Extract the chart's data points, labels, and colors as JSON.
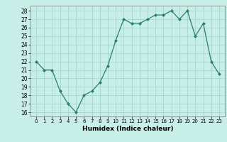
{
  "x": [
    0,
    1,
    2,
    3,
    4,
    5,
    6,
    7,
    8,
    9,
    10,
    11,
    12,
    13,
    14,
    15,
    16,
    17,
    18,
    19,
    20,
    21,
    22,
    23
  ],
  "y": [
    22,
    21,
    21,
    18.5,
    17,
    16,
    18,
    18.5,
    19.5,
    21.5,
    24.5,
    27,
    26.5,
    26.5,
    27,
    27.5,
    27.5,
    28,
    27,
    28,
    25,
    26.5,
    22,
    20.5
  ],
  "line_color": "#2e7d6e",
  "marker_color": "#2e7d6e",
  "bg_color": "#c8eee8",
  "grid_color": "#a0d8d0",
  "xlabel": "Humidex (Indice chaleur)",
  "ylim": [
    15.5,
    28.6
  ],
  "yticks": [
    16,
    17,
    18,
    19,
    20,
    21,
    22,
    23,
    24,
    25,
    26,
    27,
    28
  ],
  "xticks": [
    0,
    1,
    2,
    3,
    4,
    5,
    6,
    7,
    8,
    9,
    10,
    11,
    12,
    13,
    14,
    15,
    16,
    17,
    18,
    19,
    20,
    21,
    22,
    23
  ],
  "tick_labels": [
    "0",
    "1",
    "2",
    "3",
    "4",
    "5",
    "6",
    "7",
    "8",
    "9",
    "10",
    "11",
    "12",
    "13",
    "14",
    "15",
    "16",
    "17",
    "18",
    "19",
    "20",
    "21",
    "22",
    "23"
  ]
}
